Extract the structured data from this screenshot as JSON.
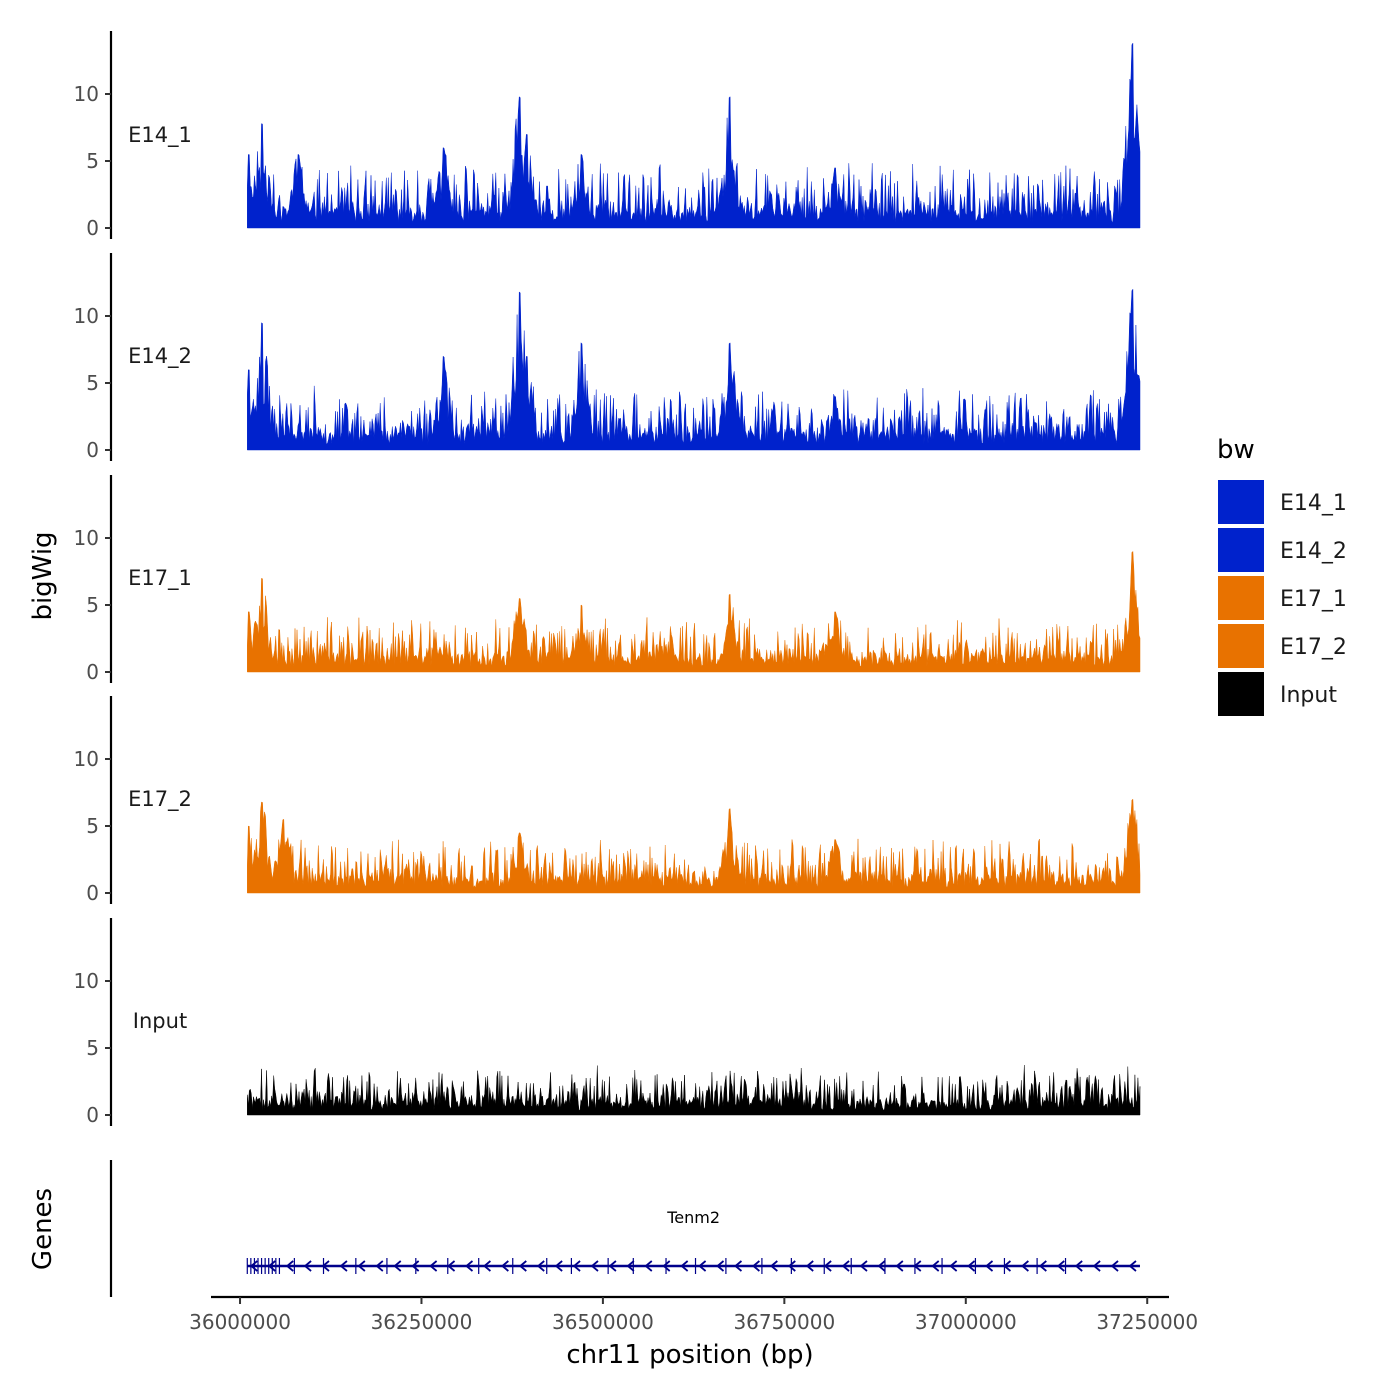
{
  "chart_data": {
    "type": "area",
    "title": "",
    "ylabel": "bigWig",
    "xlabel": "chr11 position (bp)",
    "xlim": [
      35960000,
      37280000
    ],
    "data_range": [
      36010000,
      37240000
    ],
    "x_ticks": [
      36000000,
      36250000,
      36500000,
      36750000,
      37000000,
      37250000
    ],
    "x_tick_labels": [
      "36000000",
      "36250000",
      "36500000",
      "36750000",
      "37000000",
      "37250000"
    ],
    "ylim": [
      0,
      14.5
    ],
    "y_ticks": [
      0,
      5,
      10
    ],
    "y_tick_labels": [
      "0",
      "5",
      "10"
    ],
    "legend": {
      "title": "bw",
      "placement": "right",
      "entries": [
        {
          "label": "E14_1",
          "color": "#0022CC"
        },
        {
          "label": "E14_2",
          "color": "#0022CC"
        },
        {
          "label": "E17_1",
          "color": "#E87200"
        },
        {
          "label": "E17_2",
          "color": "#E87200"
        },
        {
          "label": "Input",
          "color": "#000000"
        }
      ]
    },
    "series": [
      {
        "name": "E14_1",
        "color": "#0022CC",
        "baseline": 1.0,
        "noise": 1.6,
        "seed": 11,
        "peaks": [
          [
            36012000,
            5.5
          ],
          [
            36030000,
            7.8
          ],
          [
            36080000,
            5.5
          ],
          [
            36280000,
            6.0
          ],
          [
            36385000,
            9.8
          ],
          [
            36395000,
            7.0
          ],
          [
            36470000,
            5.5
          ],
          [
            36675000,
            9.8
          ],
          [
            36820000,
            4.5
          ],
          [
            37230000,
            13.8
          ]
        ]
      },
      {
        "name": "E14_2",
        "color": "#0022CC",
        "baseline": 1.0,
        "noise": 1.6,
        "seed": 23,
        "peaks": [
          [
            36012000,
            6.0
          ],
          [
            36030000,
            9.5
          ],
          [
            36280000,
            7.0
          ],
          [
            36385000,
            11.8
          ],
          [
            36395000,
            7.0
          ],
          [
            36470000,
            8.0
          ],
          [
            36675000,
            8.0
          ],
          [
            36820000,
            4.0
          ],
          [
            37230000,
            12.0
          ]
        ]
      },
      {
        "name": "E17_1",
        "color": "#E87200",
        "baseline": 0.9,
        "noise": 1.4,
        "seed": 37,
        "peaks": [
          [
            36012000,
            4.5
          ],
          [
            36030000,
            7.0
          ],
          [
            36385000,
            5.5
          ],
          [
            36470000,
            5.0
          ],
          [
            36675000,
            5.8
          ],
          [
            36820000,
            4.5
          ],
          [
            37230000,
            9.0
          ]
        ]
      },
      {
        "name": "E17_2",
        "color": "#E87200",
        "baseline": 0.9,
        "noise": 1.4,
        "seed": 53,
        "peaks": [
          [
            36012000,
            5.0
          ],
          [
            36030000,
            6.8
          ],
          [
            36060000,
            5.5
          ],
          [
            36385000,
            4.5
          ],
          [
            36675000,
            6.3
          ],
          [
            36820000,
            4.0
          ],
          [
            37230000,
            7.0
          ]
        ]
      },
      {
        "name": "Input",
        "color": "#000000",
        "baseline": 0.8,
        "noise": 1.2,
        "seed": 71,
        "peaks": []
      }
    ],
    "genes_track": {
      "label": "Genes",
      "genes": [
        {
          "name": "Tenm2",
          "start": 36010000,
          "end": 37240000,
          "strand": "-",
          "color": "#00008B"
        }
      ]
    }
  }
}
